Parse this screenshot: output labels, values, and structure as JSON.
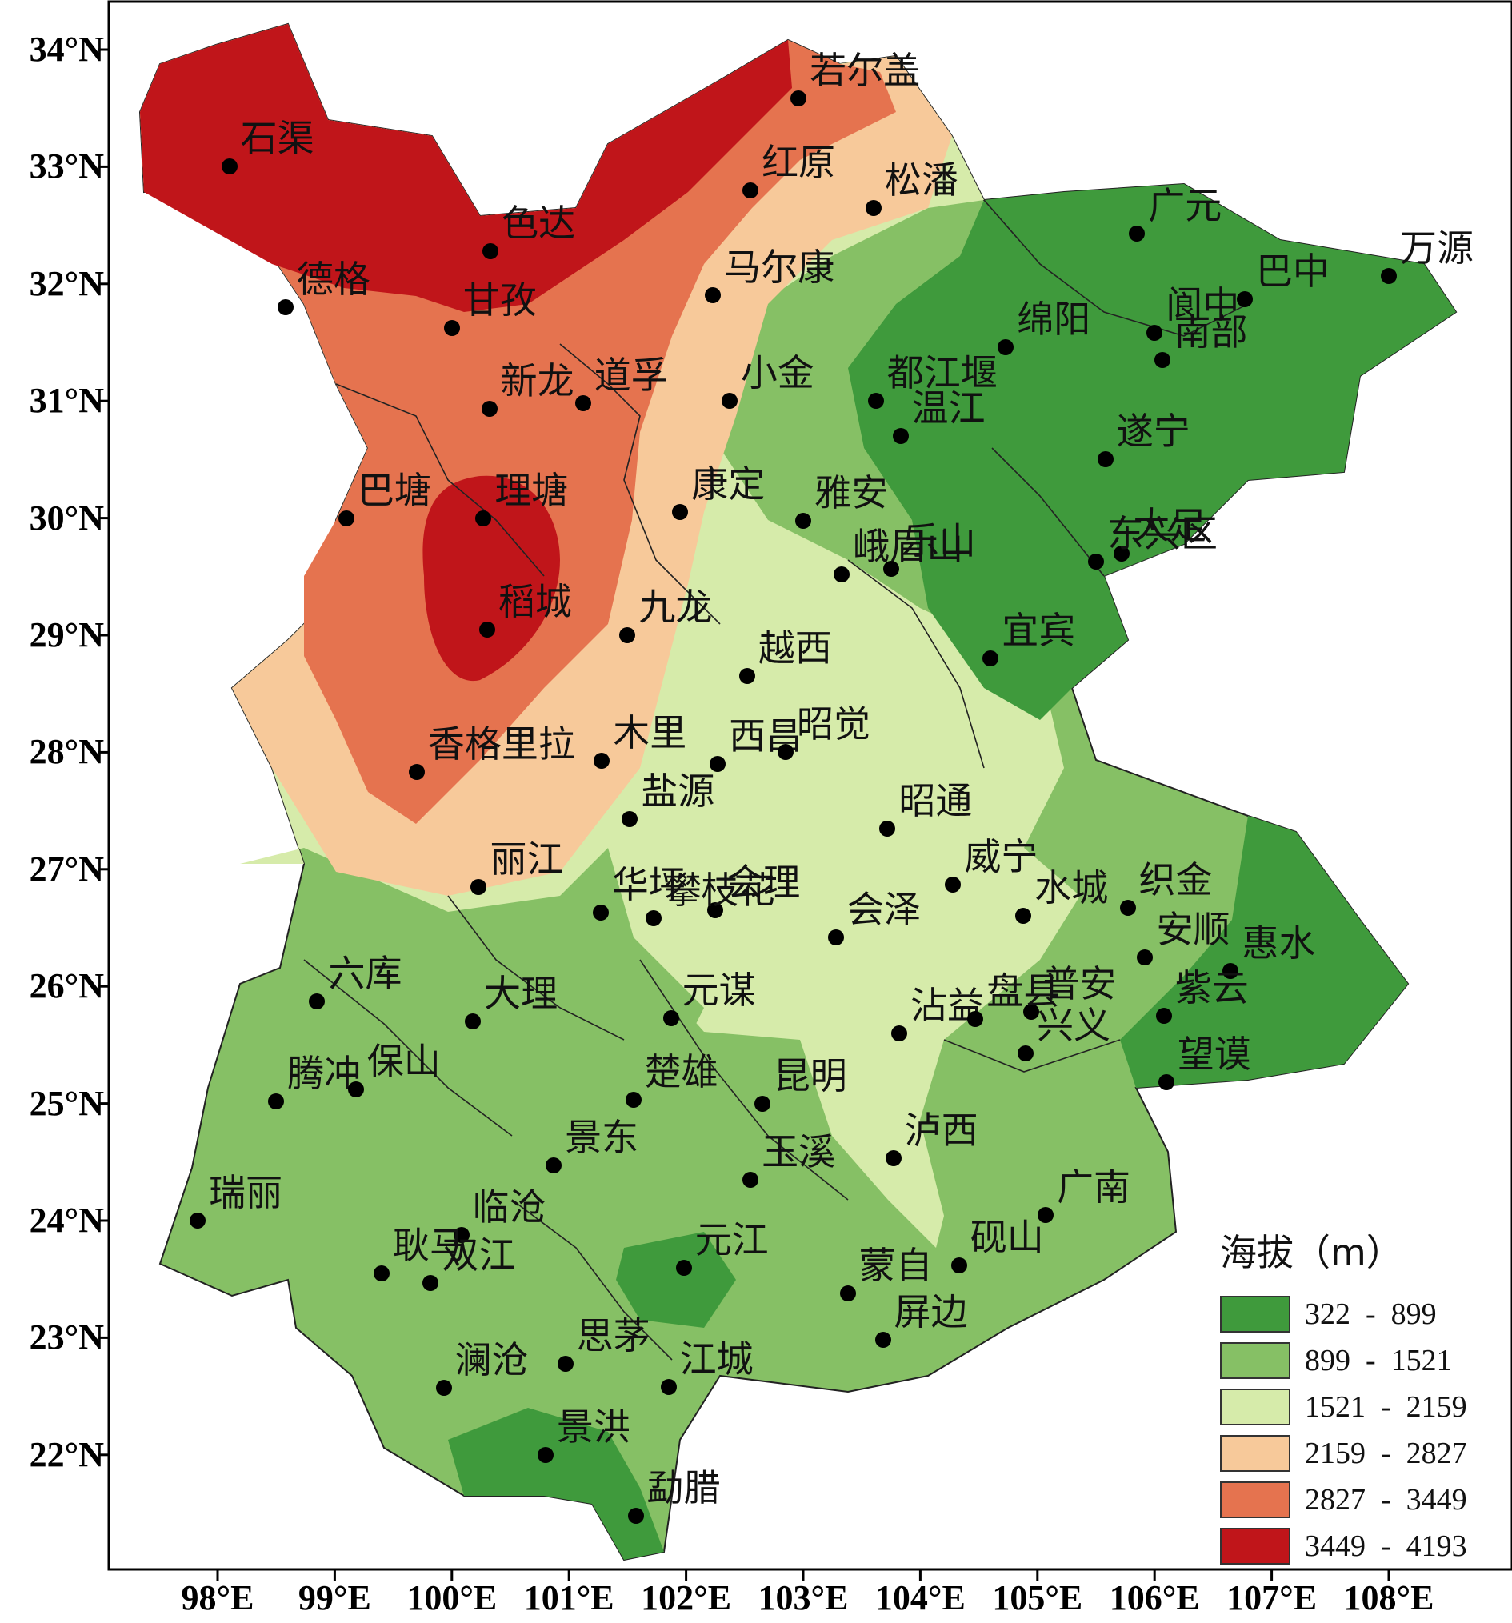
{
  "lat_labels": [
    "34°N",
    "33°N",
    "32°N",
    "31°N",
    "30°N",
    "29°N",
    "28°N",
    "27°N",
    "26°N",
    "25°N",
    "24°N",
    "23°N",
    "22°N"
  ],
  "lon_labels": [
    "98°E",
    "99°E",
    "100°E",
    "101°E",
    "102°E",
    "103°E",
    "104°E",
    "105°E",
    "106°E",
    "107°E",
    "108°E"
  ],
  "legend": {
    "title": "海拔（m）",
    "classes": [
      {
        "range": "322  -  899",
        "color": "#3f9a3c"
      },
      {
        "range": "899  -  1521",
        "color": "#86c065"
      },
      {
        "range": "1521  -  2159",
        "color": "#d6ebaa"
      },
      {
        "range": "2159  -  2827",
        "color": "#f7c99a"
      },
      {
        "range": "2827  -  3449",
        "color": "#e5734f"
      },
      {
        "range": "3449  -  4193",
        "color": "#c0151a"
      }
    ]
  },
  "stations": [
    {
      "name": "若尔盖",
      "lon": 102.96,
      "lat": 33.58
    },
    {
      "name": "石渠",
      "lon": 98.1,
      "lat": 33.0
    },
    {
      "name": "红原",
      "lon": 102.55,
      "lat": 32.8
    },
    {
      "name": "松潘",
      "lon": 103.6,
      "lat": 32.65
    },
    {
      "name": "色达",
      "lon": 100.33,
      "lat": 32.28
    },
    {
      "name": "广元",
      "lon": 105.85,
      "lat": 32.43
    },
    {
      "name": "万源",
      "lon": 108.0,
      "lat": 32.07
    },
    {
      "name": "德格",
      "lon": 98.58,
      "lat": 31.8
    },
    {
      "name": "甘孜",
      "lon": 100.0,
      "lat": 31.62
    },
    {
      "name": "马尔康",
      "lon": 102.23,
      "lat": 31.9
    },
    {
      "name": "巴中",
      "lon": 106.77,
      "lat": 31.87
    },
    {
      "name": "阆中",
      "lon": 106.0,
      "lat": 31.58
    },
    {
      "name": "绵阳",
      "lon": 104.73,
      "lat": 31.46
    },
    {
      "name": "南部",
      "lon": 106.07,
      "lat": 31.35
    },
    {
      "name": "新龙",
      "lon": 100.32,
      "lat": 30.93
    },
    {
      "name": "道孚",
      "lon": 101.12,
      "lat": 30.98
    },
    {
      "name": "小金",
      "lon": 102.37,
      "lat": 31.0
    },
    {
      "name": "温江",
      "lon": 103.83,
      "lat": 30.7
    },
    {
      "name": "都江堰",
      "lon": 103.62,
      "lat": 31.0
    },
    {
      "name": "遂宁",
      "lon": 105.58,
      "lat": 30.5
    },
    {
      "name": "巴塘",
      "lon": 99.1,
      "lat": 30.0
    },
    {
      "name": "理塘",
      "lon": 100.27,
      "lat": 30.0
    },
    {
      "name": "康定",
      "lon": 101.95,
      "lat": 30.05
    },
    {
      "name": "雅安",
      "lon": 103.0,
      "lat": 29.98
    },
    {
      "name": "峨眉山",
      "lon": 103.33,
      "lat": 29.52
    },
    {
      "name": "乐山",
      "lon": 103.75,
      "lat": 29.57
    },
    {
      "name": "大足",
      "lon": 105.72,
      "lat": 29.7
    },
    {
      "name": "东兴区",
      "lon": 105.5,
      "lat": 29.63
    },
    {
      "name": "稻城",
      "lon": 100.3,
      "lat": 29.05
    },
    {
      "name": "九龙",
      "lon": 101.5,
      "lat": 29.0
    },
    {
      "name": "宜宾",
      "lon": 104.6,
      "lat": 28.8
    },
    {
      "name": "越西",
      "lon": 102.52,
      "lat": 28.65
    },
    {
      "name": "香格里拉",
      "lon": 99.7,
      "lat": 27.83
    },
    {
      "name": "木里",
      "lon": 101.28,
      "lat": 27.93
    },
    {
      "name": "西昌",
      "lon": 102.27,
      "lat": 27.9
    },
    {
      "name": "昭觉",
      "lon": 102.85,
      "lat": 28.0
    },
    {
      "name": "盐源",
      "lon": 101.52,
      "lat": 27.43
    },
    {
      "name": "昭通",
      "lon": 103.72,
      "lat": 27.35
    },
    {
      "name": "丽江",
      "lon": 100.23,
      "lat": 26.85
    },
    {
      "name": "华坪",
      "lon": 101.27,
      "lat": 26.63
    },
    {
      "name": "会理",
      "lon": 102.25,
      "lat": 26.65
    },
    {
      "name": "攀枝花",
      "lon": 101.72,
      "lat": 26.58
    },
    {
      "name": "会泽",
      "lon": 103.28,
      "lat": 26.42
    },
    {
      "name": "威宁",
      "lon": 104.28,
      "lat": 26.87
    },
    {
      "name": "水城",
      "lon": 104.88,
      "lat": 26.6
    },
    {
      "name": "织金",
      "lon": 105.77,
      "lat": 26.67
    },
    {
      "name": "安顺",
      "lon": 105.92,
      "lat": 26.25
    },
    {
      "name": "惠水",
      "lon": 106.65,
      "lat": 26.13
    },
    {
      "name": "六库",
      "lon": 98.85,
      "lat": 25.87
    },
    {
      "name": "大理",
      "lon": 100.18,
      "lat": 25.7
    },
    {
      "name": "元谋",
      "lon": 101.87,
      "lat": 25.73
    },
    {
      "name": "沾益",
      "lon": 103.82,
      "lat": 25.6
    },
    {
      "name": "普安",
      "lon": 104.95,
      "lat": 25.78
    },
    {
      "name": "紫云",
      "lon": 106.08,
      "lat": 25.75
    },
    {
      "name": "盘县",
      "lon": 104.47,
      "lat": 25.72
    },
    {
      "name": "兴义",
      "lon": 104.9,
      "lat": 25.43
    },
    {
      "name": "望谟",
      "lon": 106.1,
      "lat": 25.18
    },
    {
      "name": "腾冲",
      "lon": 98.5,
      "lat": 25.02
    },
    {
      "name": "保山",
      "lon": 99.18,
      "lat": 25.12
    },
    {
      "name": "楚雄",
      "lon": 101.55,
      "lat": 25.03
    },
    {
      "name": "昆明",
      "lon": 102.65,
      "lat": 25.0
    },
    {
      "name": "泸西",
      "lon": 103.77,
      "lat": 24.53
    },
    {
      "name": "景东",
      "lon": 100.87,
      "lat": 24.47
    },
    {
      "name": "玉溪",
      "lon": 102.55,
      "lat": 24.35
    },
    {
      "name": "广南",
      "lon": 105.07,
      "lat": 24.05
    },
    {
      "name": "瑞丽",
      "lon": 97.83,
      "lat": 24.0
    },
    {
      "name": "临沧",
      "lon": 100.08,
      "lat": 23.88
    },
    {
      "name": "耿马",
      "lon": 99.4,
      "lat": 23.55
    },
    {
      "name": "双江",
      "lon": 99.82,
      "lat": 23.47
    },
    {
      "name": "元江",
      "lon": 101.98,
      "lat": 23.6
    },
    {
      "name": "蒙自",
      "lon": 103.38,
      "lat": 23.38
    },
    {
      "name": "砚山",
      "lon": 104.33,
      "lat": 23.62
    },
    {
      "name": "屏边",
      "lon": 103.68,
      "lat": 22.98
    },
    {
      "name": "思茅",
      "lon": 100.97,
      "lat": 22.78
    },
    {
      "name": "澜沧",
      "lon": 99.93,
      "lat": 22.57
    },
    {
      "name": "江城",
      "lon": 101.85,
      "lat": 22.58
    },
    {
      "name": "景洪",
      "lon": 100.8,
      "lat": 22.0
    },
    {
      "name": "勐腊",
      "lon": 101.57,
      "lat": 21.48
    }
  ]
}
